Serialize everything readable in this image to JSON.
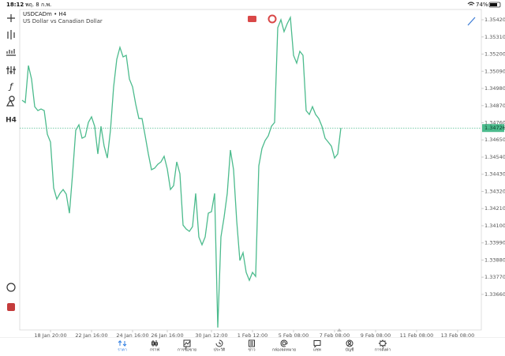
{
  "status_bar": {
    "time": "18:12",
    "date": "พฤ. 8 ก.พ.",
    "battery": "74%"
  },
  "toolbar": {
    "timeframe": "H4"
  },
  "chart_data": {
    "type": "line",
    "title": "USDCADm • H4",
    "subtitle": "US Dollar vs Canadian Dollar",
    "color": "#4cbb8d",
    "grid": false,
    "categories": [
      null,
      null,
      null,
      null,
      null,
      null,
      null,
      null,
      null,
      "18 Jan 20:00",
      null,
      null,
      null,
      null,
      null,
      null,
      null,
      null,
      null,
      null,
      null,
      null,
      "22 Jan 16:00",
      null,
      null,
      null,
      null,
      null,
      null,
      null,
      null,
      null,
      null,
      null,
      null,
      "24 Jan 16:00",
      null,
      null,
      null,
      null,
      null,
      null,
      null,
      null,
      null,
      null,
      "26 Jan 16:00",
      null,
      null,
      null,
      null,
      null,
      null,
      null,
      null,
      null,
      null,
      null,
      null,
      null,
      "30 Jan 12:00",
      null,
      null,
      null,
      null,
      null,
      null,
      null,
      null,
      null,
      null,
      null,
      null,
      "1 Feb 12:00",
      null,
      null,
      null,
      null,
      null,
      null,
      null,
      null,
      null,
      null,
      null,
      null,
      "5 Feb 08:00",
      null,
      null,
      null,
      null,
      null,
      null,
      null,
      null,
      null,
      null,
      null,
      null,
      "7 Feb 08:00",
      null,
      null,
      null,
      null,
      null,
      null,
      null,
      null,
      null,
      null,
      null,
      null,
      "9 Feb 08:00",
      null,
      null,
      null,
      null,
      null,
      null,
      null,
      null,
      null,
      null,
      null,
      null,
      "11 Feb 08:00",
      null,
      null,
      null,
      null,
      null,
      null,
      null,
      null,
      null,
      null,
      null,
      null,
      "13 Feb 08:00",
      null,
      null,
      null,
      null
    ],
    "values": [
      1.34904,
      1.34889,
      1.35127,
      1.3504,
      1.34863,
      1.34838,
      1.34848,
      1.34838,
      1.34686,
      1.34636,
      1.34342,
      1.34271,
      1.34307,
      1.34332,
      1.34302,
      1.3418,
      1.34433,
      1.34712,
      1.34747,
      1.34661,
      1.34671,
      1.34762,
      1.34798,
      1.34737,
      1.3456,
      1.34737,
      1.3461,
      1.34534,
      1.34712,
      1.3499,
      1.35167,
      1.35243,
      1.35182,
      1.35192,
      1.3504,
      1.3499,
      1.34879,
      1.34787,
      1.34787,
      1.34676,
      1.3456,
      1.34459,
      1.34469,
      1.34494,
      1.34509,
      1.34545,
      1.34464,
      1.34332,
      1.34357,
      1.34509,
      1.34433,
      1.34104,
      1.34079,
      1.34064,
      1.34094,
      1.34307,
      1.34028,
      1.33978,
      1.34028,
      1.3418,
      1.3419,
      1.34307,
      1.33447,
      1.34028,
      1.34155,
      1.34307,
      1.34585,
      1.34459,
      1.3413,
      1.33877,
      1.33927,
      1.33801,
      1.3375,
      1.33801,
      1.33775,
      1.34484,
      1.34595,
      1.34646,
      1.34676,
      1.34737,
      1.34762,
      1.35369,
      1.3542,
      1.35344,
      1.35395,
      1.35435,
      1.35192,
      1.35142,
      1.35218,
      1.35192,
      1.34838,
      1.34813,
      1.34863,
      1.34813,
      1.34787,
      1.34737,
      1.34661,
      1.34636,
      1.3461,
      1.34534,
      1.3456,
      1.34726,
      null,
      null,
      null,
      null,
      null,
      null,
      null,
      null,
      null,
      null,
      null,
      null,
      null,
      null,
      null,
      null,
      null,
      null,
      null,
      null,
      null,
      null,
      null,
      null,
      null,
      null,
      null,
      null,
      null,
      null,
      null,
      null,
      null,
      null,
      null,
      null,
      null,
      null,
      null,
      null,
      null
    ],
    "last_price": 1.34726,
    "ylim": [
      1.33432,
      1.35486
    ],
    "yticks": [
      {
        "value": 1.3542,
        "label": "1.35420"
      },
      {
        "value": 1.3531,
        "label": "1.35310"
      },
      {
        "value": 1.352,
        "label": "1.35200"
      },
      {
        "value": 1.3509,
        "label": "1.35090"
      },
      {
        "value": 1.3498,
        "label": "1.34980"
      },
      {
        "value": 1.3487,
        "label": "1.34870"
      },
      {
        "value": 1.3476,
        "label": "1.34760"
      },
      {
        "value": 1.3465,
        "label": "1.34650"
      },
      {
        "value": 1.3454,
        "label": "1.34540"
      },
      {
        "value": 1.3443,
        "label": "1.34430"
      },
      {
        "value": 1.3432,
        "label": "1.34320"
      },
      {
        "value": 1.3421,
        "label": "1.34210"
      },
      {
        "value": 1.341,
        "label": "1.34100"
      },
      {
        "value": 1.3399,
        "label": "1.33990"
      },
      {
        "value": 1.3388,
        "label": "1.33880"
      },
      {
        "value": 1.3377,
        "label": "1.33770"
      },
      {
        "value": 1.3366,
        "label": "1.33660"
      }
    ]
  },
  "tab_bar": {
    "tabs": [
      "ราคา",
      "กราฟ",
      "การซื้อขาย",
      "ประวัติ",
      "ข่าว",
      "กล่องจดหมาย",
      "แชท",
      "บัญชี",
      "การตั้งค่า"
    ]
  }
}
